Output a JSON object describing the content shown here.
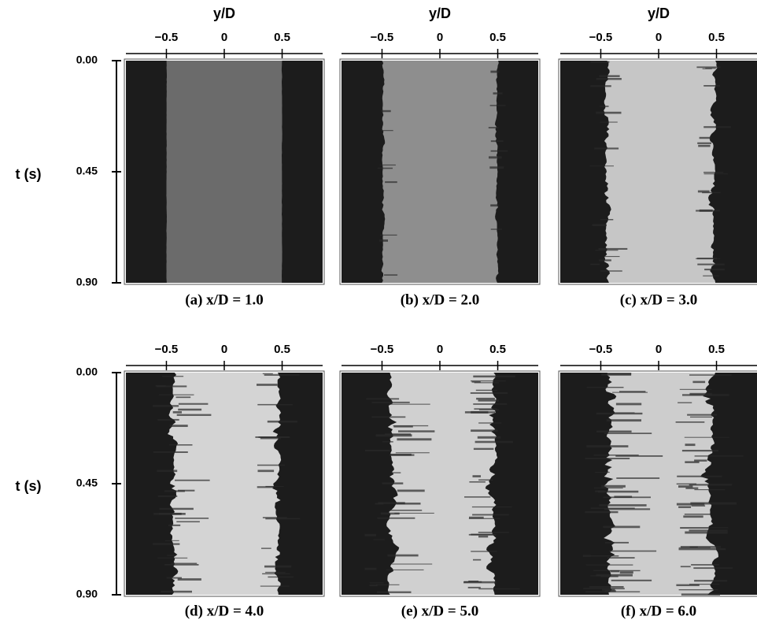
{
  "xlabel": "y/D",
  "ylabel": "t (s)",
  "xlim": [
    -0.85,
    0.85
  ],
  "xticks": [
    {
      "value": -0.5,
      "label": "−0.5"
    },
    0,
    0.5
  ],
  "ylim": [
    0,
    0.9
  ],
  "yticks": [
    {
      "value": 0,
      "label": "0.00"
    },
    {
      "value": 0.45,
      "label": "0.45"
    },
    {
      "value": 0.9,
      "label": "0.90"
    }
  ],
  "panels": [
    {
      "caption": "(a)  x/D = 1.0"
    },
    {
      "caption": "(b)  x/D = 2.0"
    },
    {
      "caption": "(c)  x/D = 3.0"
    },
    {
      "caption": "(d)  x/D = 4.0"
    },
    {
      "caption": "(e)  x/D = 5.0"
    },
    {
      "caption": "(f)  x/D = 6.0"
    }
  ]
}
